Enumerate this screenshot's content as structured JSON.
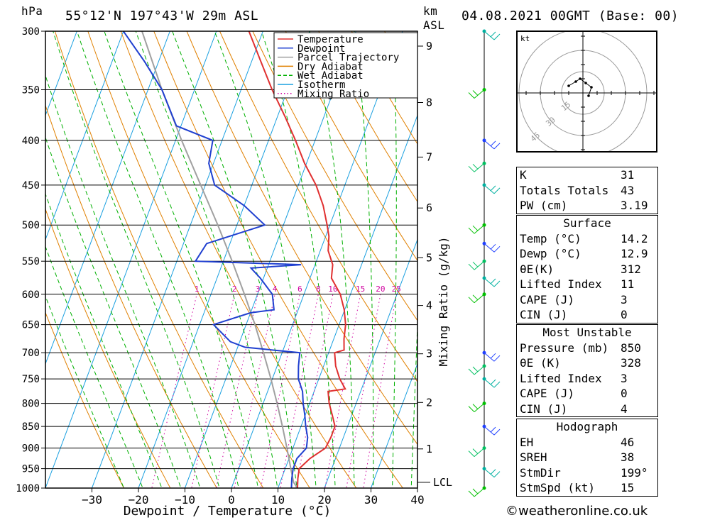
{
  "header": {
    "units_left": "hPa",
    "location": "55°12'N  197°43'W  29m  ASL",
    "units_km": "km",
    "units_asl": "ASL",
    "datetime": "04.08.2021  00GMT  (Base: 00)"
  },
  "legend": [
    {
      "label": "Temperature",
      "color": "#e03030",
      "style": "solid"
    },
    {
      "label": "Dewpoint",
      "color": "#2040d0",
      "style": "solid"
    },
    {
      "label": "Parcel Trajectory",
      "color": "#a0a0a0",
      "style": "solid"
    },
    {
      "label": "Dry Adiabat",
      "color": "#e08000",
      "style": "solid"
    },
    {
      "label": "Wet Adiabat",
      "color": "#00b000",
      "style": "dashed"
    },
    {
      "label": "Isotherm",
      "color": "#1aa0e0",
      "style": "solid"
    },
    {
      "label": "Mixing Ratio",
      "color": "#d000a0",
      "style": "dotted"
    }
  ],
  "chart_data": {
    "type": "line",
    "subtype": "skew-t log-p",
    "xlabel": "Dewpoint / Temperature (°C)",
    "ylabel": "hPa",
    "right_label": "Mixing Ratio (g/kg)",
    "xlim": [
      -40,
      40
    ],
    "ylim": [
      1000,
      300
    ],
    "x_ticks": [
      -30,
      -20,
      -10,
      0,
      10,
      20,
      30,
      40
    ],
    "pressure_ticks": [
      300,
      350,
      400,
      450,
      500,
      550,
      600,
      650,
      700,
      750,
      800,
      850,
      900,
      950,
      1000
    ],
    "height_km_ticks": [
      {
        "km": 1,
        "p": 902
      },
      {
        "km": 2,
        "p": 798
      },
      {
        "km": 3,
        "p": 702
      },
      {
        "km": 4,
        "p": 618
      },
      {
        "km": 5,
        "p": 545
      },
      {
        "km": 6,
        "p": 478
      },
      {
        "km": 7,
        "p": 418
      },
      {
        "km": 8,
        "p": 362
      },
      {
        "km": 9,
        "p": 312
      }
    ],
    "lcl_label": "LCL",
    "lcl_p": 985,
    "mixing_ratio_labels": [
      1,
      2,
      3,
      4,
      6,
      8,
      10,
      15,
      20,
      25
    ],
    "mixing_ratio_label_p": 600,
    "series": [
      {
        "name": "Temperature",
        "color": "#e03030",
        "p": [
          1000,
          975,
          950,
          925,
          900,
          875,
          850,
          825,
          800,
          775,
          770,
          750,
          725,
          700,
          695,
          675,
          650,
          625,
          600,
          575,
          565,
          555,
          535,
          515,
          500,
          475,
          450,
          425,
          400,
          375,
          350,
          325,
          300
        ],
        "t": [
          14.2,
          13.5,
          13.0,
          14.5,
          17.0,
          17.3,
          17.3,
          15.8,
          14.2,
          13.0,
          16.5,
          14.5,
          12.6,
          11.3,
          13.1,
          12.2,
          11.4,
          9.9,
          7.8,
          4.6,
          4.2,
          3.8,
          1.7,
          0.7,
          -0.6,
          -3.0,
          -6.2,
          -10.4,
          -14.2,
          -18.5,
          -23.3,
          -28.0,
          -33.0
        ]
      },
      {
        "name": "Dewpoint",
        "color": "#2040d0",
        "p": [
          1000,
          975,
          950,
          925,
          900,
          875,
          850,
          825,
          800,
          775,
          750,
          725,
          700,
          690,
          680,
          650,
          630,
          625,
          600,
          575,
          560,
          555,
          550,
          525,
          500,
          475,
          450,
          425,
          400,
          385,
          350,
          325,
          300
        ],
        "t": [
          12.9,
          12.2,
          11.7,
          11.7,
          12.9,
          12.3,
          11.0,
          9.9,
          8.6,
          7.5,
          5.6,
          4.6,
          3.8,
          -8.4,
          -12.0,
          -17.0,
          -10.0,
          -5.2,
          -6.8,
          -10.7,
          -13.5,
          -3.0,
          -26.0,
          -25.0,
          -14.0,
          -20.0,
          -28.0,
          -31.0,
          -32.0,
          -41.0,
          -47.0,
          -53.0,
          -60.0
        ]
      },
      {
        "name": "Parcel Trajectory",
        "color": "#a0a0a0",
        "p": [
          1000,
          985,
          950,
          900,
          850,
          800,
          750,
          700,
          650,
          600,
          550,
          500,
          450,
          400,
          350,
          300
        ],
        "t": [
          14.2,
          12.9,
          11.2,
          8.7,
          6.0,
          3.0,
          -0.3,
          -4.0,
          -8.1,
          -12.8,
          -18.1,
          -24.1,
          -31.0,
          -38.7,
          -47.0,
          -56.0
        ]
      }
    ]
  },
  "wind_profile": {
    "colors": [
      "#00b0a0",
      "#00c000",
      "#2040ff",
      "#00c060"
    ],
    "levels_p": [
      300,
      350,
      400,
      425,
      450,
      500,
      525,
      550,
      575,
      600,
      700,
      725,
      750,
      800,
      850,
      900,
      950,
      1000
    ]
  },
  "hodograph": {
    "unit_label": "kt",
    "ring_labels": [
      "15",
      "30",
      "45"
    ],
    "points_kt": [
      [
        -10,
        5
      ],
      [
        -5,
        8
      ],
      [
        -2,
        10
      ],
      [
        2,
        7
      ],
      [
        6,
        4
      ],
      [
        4,
        -2
      ]
    ]
  },
  "indices": [
    {
      "label": "K",
      "value": "31"
    },
    {
      "label": "Totals Totals",
      "value": "43"
    },
    {
      "label": "PW (cm)",
      "value": "3.19"
    }
  ],
  "surface": {
    "title": "Surface",
    "rows": [
      {
        "label": "Temp (°C)",
        "value": "14.2"
      },
      {
        "label": "Dewp (°C)",
        "value": "12.9"
      },
      {
        "label": "θE(K)",
        "value": "312"
      },
      {
        "label": "Lifted Index",
        "value": "11"
      },
      {
        "label": "CAPE (J)",
        "value": "3"
      },
      {
        "label": "CIN (J)",
        "value": "0"
      }
    ]
  },
  "most_unstable": {
    "title": "Most Unstable",
    "rows": [
      {
        "label": "Pressure (mb)",
        "value": "850"
      },
      {
        "label": "θE (K)",
        "value": "328"
      },
      {
        "label": "Lifted Index",
        "value": "3"
      },
      {
        "label": "CAPE (J)",
        "value": "0"
      },
      {
        "label": "CIN (J)",
        "value": "4"
      }
    ]
  },
  "hodo_table": {
    "title": "Hodograph",
    "rows": [
      {
        "label": "EH",
        "value": "46"
      },
      {
        "label": "SREH",
        "value": "38"
      },
      {
        "label": "StmDir",
        "value": "199°"
      },
      {
        "label": "StmSpd (kt)",
        "value": "15"
      }
    ]
  },
  "credit": "©weatheronline.co.uk"
}
